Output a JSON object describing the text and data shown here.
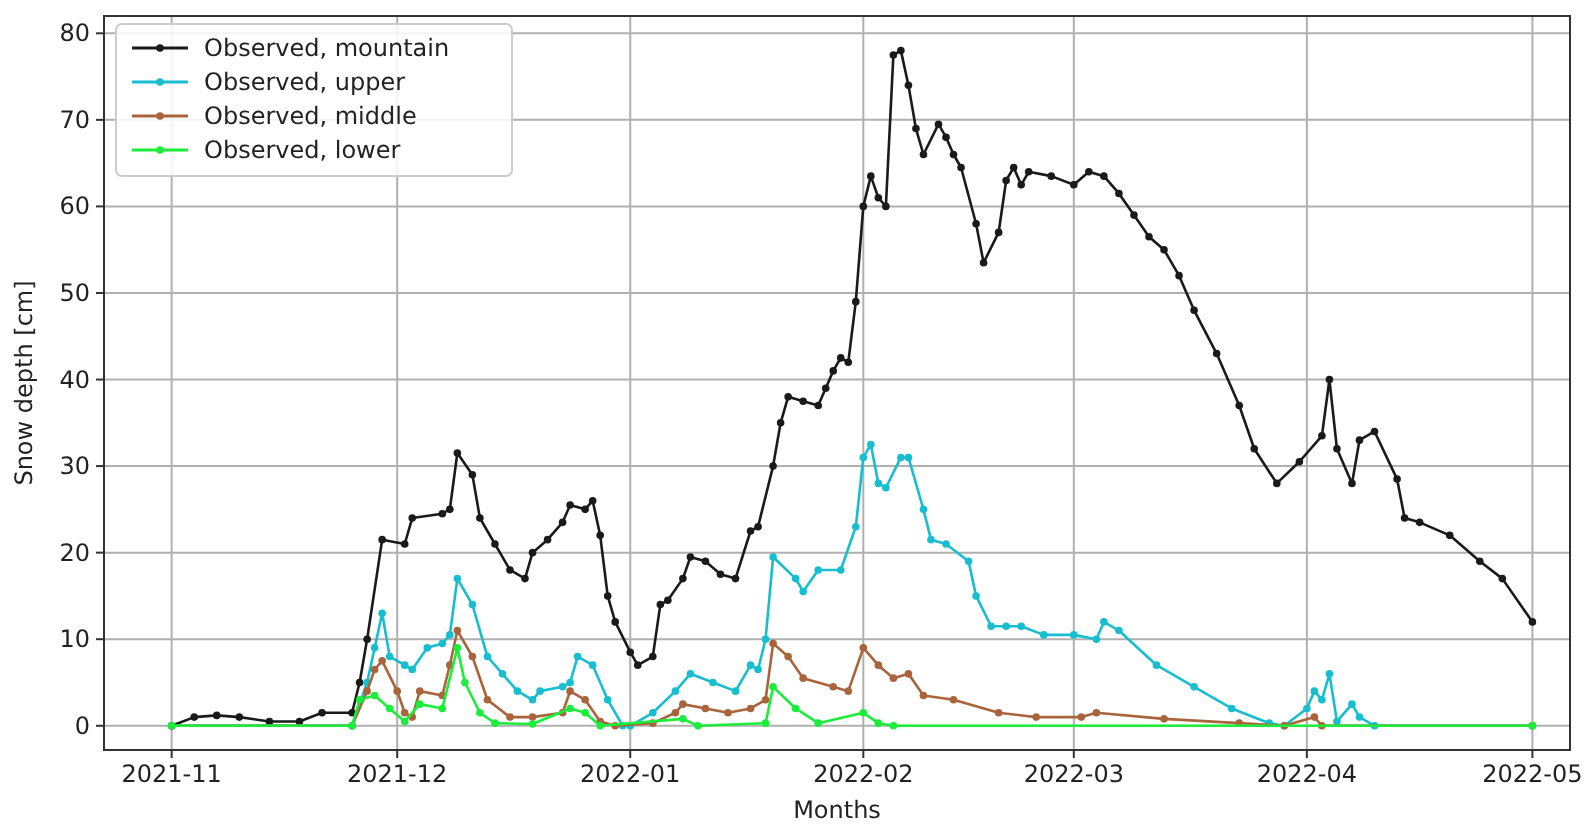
{
  "chart_data": {
    "type": "line",
    "xlabel": "Months",
    "ylabel": "Snow depth [cm]",
    "xlim": [
      "2021-10-23",
      "2022-05-06"
    ],
    "xticks": [
      "2021-11",
      "2021-12",
      "2022-01",
      "2022-02",
      "2022-03",
      "2022-04",
      "2022-05"
    ],
    "ylim": [
      -2.8,
      82
    ],
    "yticks": [
      0,
      10,
      20,
      30,
      40,
      50,
      60,
      70,
      80
    ],
    "grid": true,
    "legend": "top left",
    "marker": "circle",
    "line_style": "solid",
    "series": [
      {
        "name": "Observed, mountain",
        "color": "#1a1a1a",
        "x": [
          "2021-11-01",
          "2021-11-04",
          "2021-11-07",
          "2021-11-10",
          "2021-11-14",
          "2021-11-18",
          "2021-11-21",
          "2021-11-25",
          "2021-11-26",
          "2021-11-27",
          "2021-11-29",
          "2021-12-02",
          "2021-12-03",
          "2021-12-07",
          "2021-12-08",
          "2021-12-09",
          "2021-12-11",
          "2021-12-12",
          "2021-12-14",
          "2021-12-16",
          "2021-12-18",
          "2021-12-19",
          "2021-12-21",
          "2021-12-23",
          "2021-12-24",
          "2021-12-26",
          "2021-12-27",
          "2021-12-28",
          "2021-12-29",
          "2021-12-30",
          "2022-01-01",
          "2022-01-02",
          "2022-01-04",
          "2022-01-05",
          "2022-01-06",
          "2022-01-08",
          "2022-01-09",
          "2022-01-11",
          "2022-01-13",
          "2022-01-15",
          "2022-01-17",
          "2022-01-18",
          "2022-01-20",
          "2022-01-21",
          "2022-01-22",
          "2022-01-24",
          "2022-01-26",
          "2022-01-27",
          "2022-01-28",
          "2022-01-29",
          "2022-01-30",
          "2022-01-31",
          "2022-02-01",
          "2022-02-02",
          "2022-02-03",
          "2022-02-04",
          "2022-02-05",
          "2022-02-06",
          "2022-02-07",
          "2022-02-08",
          "2022-02-09",
          "2022-02-11",
          "2022-02-12",
          "2022-02-13",
          "2022-02-14",
          "2022-02-16",
          "2022-02-17",
          "2022-02-19",
          "2022-02-20",
          "2022-02-21",
          "2022-02-22",
          "2022-02-23",
          "2022-02-26",
          "2022-03-01",
          "2022-03-03",
          "2022-03-05",
          "2022-03-07",
          "2022-03-09",
          "2022-03-11",
          "2022-03-13",
          "2022-03-15",
          "2022-03-17",
          "2022-03-20",
          "2022-03-23",
          "2022-03-25",
          "2022-03-28",
          "2022-03-31",
          "2022-04-03",
          "2022-04-04",
          "2022-04-05",
          "2022-04-07",
          "2022-04-08",
          "2022-04-10",
          "2022-04-13",
          "2022-04-14",
          "2022-04-16",
          "2022-04-20",
          "2022-04-24",
          "2022-04-27",
          "2022-05-01"
        ],
        "values": [
          0,
          1,
          1.2,
          1,
          0.5,
          0.5,
          1.5,
          1.5,
          5,
          10,
          21.5,
          21,
          24,
          24.5,
          25,
          31.5,
          29,
          24,
          21,
          18,
          17,
          20,
          21.5,
          23.5,
          25.5,
          25,
          26,
          22,
          15,
          12,
          8.5,
          7,
          8,
          14,
          14.5,
          17,
          19.5,
          19,
          17.5,
          17,
          22.5,
          23,
          30,
          35,
          38,
          37.5,
          37,
          39,
          41,
          42.5,
          42,
          49,
          60,
          63.5,
          61,
          60,
          77.5,
          78,
          74,
          69,
          66,
          69.5,
          68,
          66,
          64.5,
          58,
          53.5,
          57,
          63,
          64.5,
          62.5,
          64,
          63.5,
          62.5,
          64,
          63.5,
          61.5,
          59,
          56.5,
          55,
          52,
          48,
          43,
          37,
          32,
          28,
          30.5,
          33.5,
          40,
          32,
          28,
          33,
          34,
          28.5,
          24,
          23.5,
          22,
          19,
          17,
          12
        ]
      },
      {
        "name": "Observed, upper",
        "color": "#17becf",
        "x": [
          "2021-11-01",
          "2021-11-25",
          "2021-11-27",
          "2021-11-28",
          "2021-11-29",
          "2021-11-30",
          "2021-12-02",
          "2021-12-03",
          "2021-12-05",
          "2021-12-07",
          "2021-12-08",
          "2021-12-09",
          "2021-12-11",
          "2021-12-13",
          "2021-12-15",
          "2021-12-17",
          "2021-12-19",
          "2021-12-20",
          "2021-12-23",
          "2021-12-24",
          "2021-12-25",
          "2021-12-27",
          "2021-12-29",
          "2021-12-31",
          "2022-01-01",
          "2022-01-04",
          "2022-01-07",
          "2022-01-09",
          "2022-01-12",
          "2022-01-15",
          "2022-01-17",
          "2022-01-18",
          "2022-01-19",
          "2022-01-20",
          "2022-01-23",
          "2022-01-24",
          "2022-01-26",
          "2022-01-29",
          "2022-01-31",
          "2022-02-01",
          "2022-02-02",
          "2022-02-03",
          "2022-02-04",
          "2022-02-06",
          "2022-02-07",
          "2022-02-09",
          "2022-02-10",
          "2022-02-12",
          "2022-02-15",
          "2022-02-16",
          "2022-02-18",
          "2022-02-20",
          "2022-02-22",
          "2022-02-25",
          "2022-03-01",
          "2022-03-04",
          "2022-03-05",
          "2022-03-07",
          "2022-03-12",
          "2022-03-17",
          "2022-03-22",
          "2022-03-27",
          "2022-03-29",
          "2022-04-01",
          "2022-04-02",
          "2022-04-03",
          "2022-04-04",
          "2022-04-05",
          "2022-04-07",
          "2022-04-08",
          "2022-04-10",
          "2022-05-01"
        ],
        "values": [
          0,
          0,
          5,
          9,
          13,
          8,
          7,
          6.5,
          9,
          9.5,
          10.5,
          17,
          14,
          8,
          6,
          4,
          3,
          4,
          4.5,
          5,
          8,
          7,
          3,
          0,
          0,
          1.5,
          4,
          6,
          5,
          4,
          7,
          6.5,
          10,
          19.5,
          17,
          15.5,
          18,
          18,
          23,
          31,
          32.5,
          28,
          27.5,
          31,
          31,
          25,
          21.5,
          21,
          19,
          15,
          11.5,
          11.5,
          11.5,
          10.5,
          10.5,
          10,
          12,
          11,
          7,
          4.5,
          2,
          0.3,
          0,
          2,
          4,
          3,
          6,
          0.5,
          2.5,
          1,
          0,
          0
        ]
      },
      {
        "name": "Observed, middle",
        "color": "#a9643c",
        "x": [
          "2021-11-01",
          "2021-11-25",
          "2021-11-27",
          "2021-11-28",
          "2021-11-29",
          "2021-12-01",
          "2021-12-02",
          "2021-12-03",
          "2021-12-04",
          "2021-12-07",
          "2021-12-08",
          "2021-12-09",
          "2021-12-11",
          "2021-12-13",
          "2021-12-16",
          "2021-12-19",
          "2021-12-23",
          "2021-12-24",
          "2021-12-26",
          "2021-12-28",
          "2021-12-30",
          "2022-01-04",
          "2022-01-07",
          "2022-01-08",
          "2022-01-11",
          "2022-01-14",
          "2022-01-17",
          "2022-01-19",
          "2022-01-20",
          "2022-01-22",
          "2022-01-24",
          "2022-01-28",
          "2022-01-30",
          "2022-02-01",
          "2022-02-03",
          "2022-02-05",
          "2022-02-07",
          "2022-02-09",
          "2022-02-13",
          "2022-02-19",
          "2022-02-24",
          "2022-03-02",
          "2022-03-04",
          "2022-03-13",
          "2022-03-23",
          "2022-03-29",
          "2022-04-02",
          "2022-04-03",
          "2022-05-01"
        ],
        "values": [
          0,
          0,
          4,
          6.5,
          7.5,
          4,
          1.5,
          1,
          4,
          3.5,
          7,
          11,
          8,
          3,
          1,
          1,
          1.5,
          4,
          3,
          0.5,
          0,
          0.3,
          1.5,
          2.5,
          2,
          1.5,
          2,
          3,
          9.5,
          8,
          5.5,
          4.5,
          4,
          9,
          7,
          5.5,
          6,
          3.5,
          3,
          1.5,
          1,
          1,
          1.5,
          0.8,
          0.3,
          0,
          1,
          0,
          0
        ]
      },
      {
        "name": "Observed, lower",
        "color": "#1aee3a",
        "x": [
          "2021-11-01",
          "2021-11-25",
          "2021-11-26",
          "2021-11-28",
          "2021-11-30",
          "2021-12-02",
          "2021-12-04",
          "2021-12-07",
          "2021-12-09",
          "2021-12-10",
          "2021-12-12",
          "2021-12-14",
          "2021-12-19",
          "2021-12-24",
          "2021-12-26",
          "2021-12-28",
          "2022-01-08",
          "2022-01-10",
          "2022-01-19",
          "2022-01-20",
          "2022-01-23",
          "2022-01-26",
          "2022-02-01",
          "2022-02-03",
          "2022-02-05",
          "2022-05-01"
        ],
        "values": [
          0,
          0,
          3,
          3.5,
          2,
          0.5,
          2.5,
          2,
          9,
          5,
          1.5,
          0.3,
          0.2,
          2,
          1.5,
          0,
          0.8,
          0,
          0.3,
          4.5,
          2,
          0.3,
          1.5,
          0.3,
          0,
          0
        ]
      }
    ]
  }
}
